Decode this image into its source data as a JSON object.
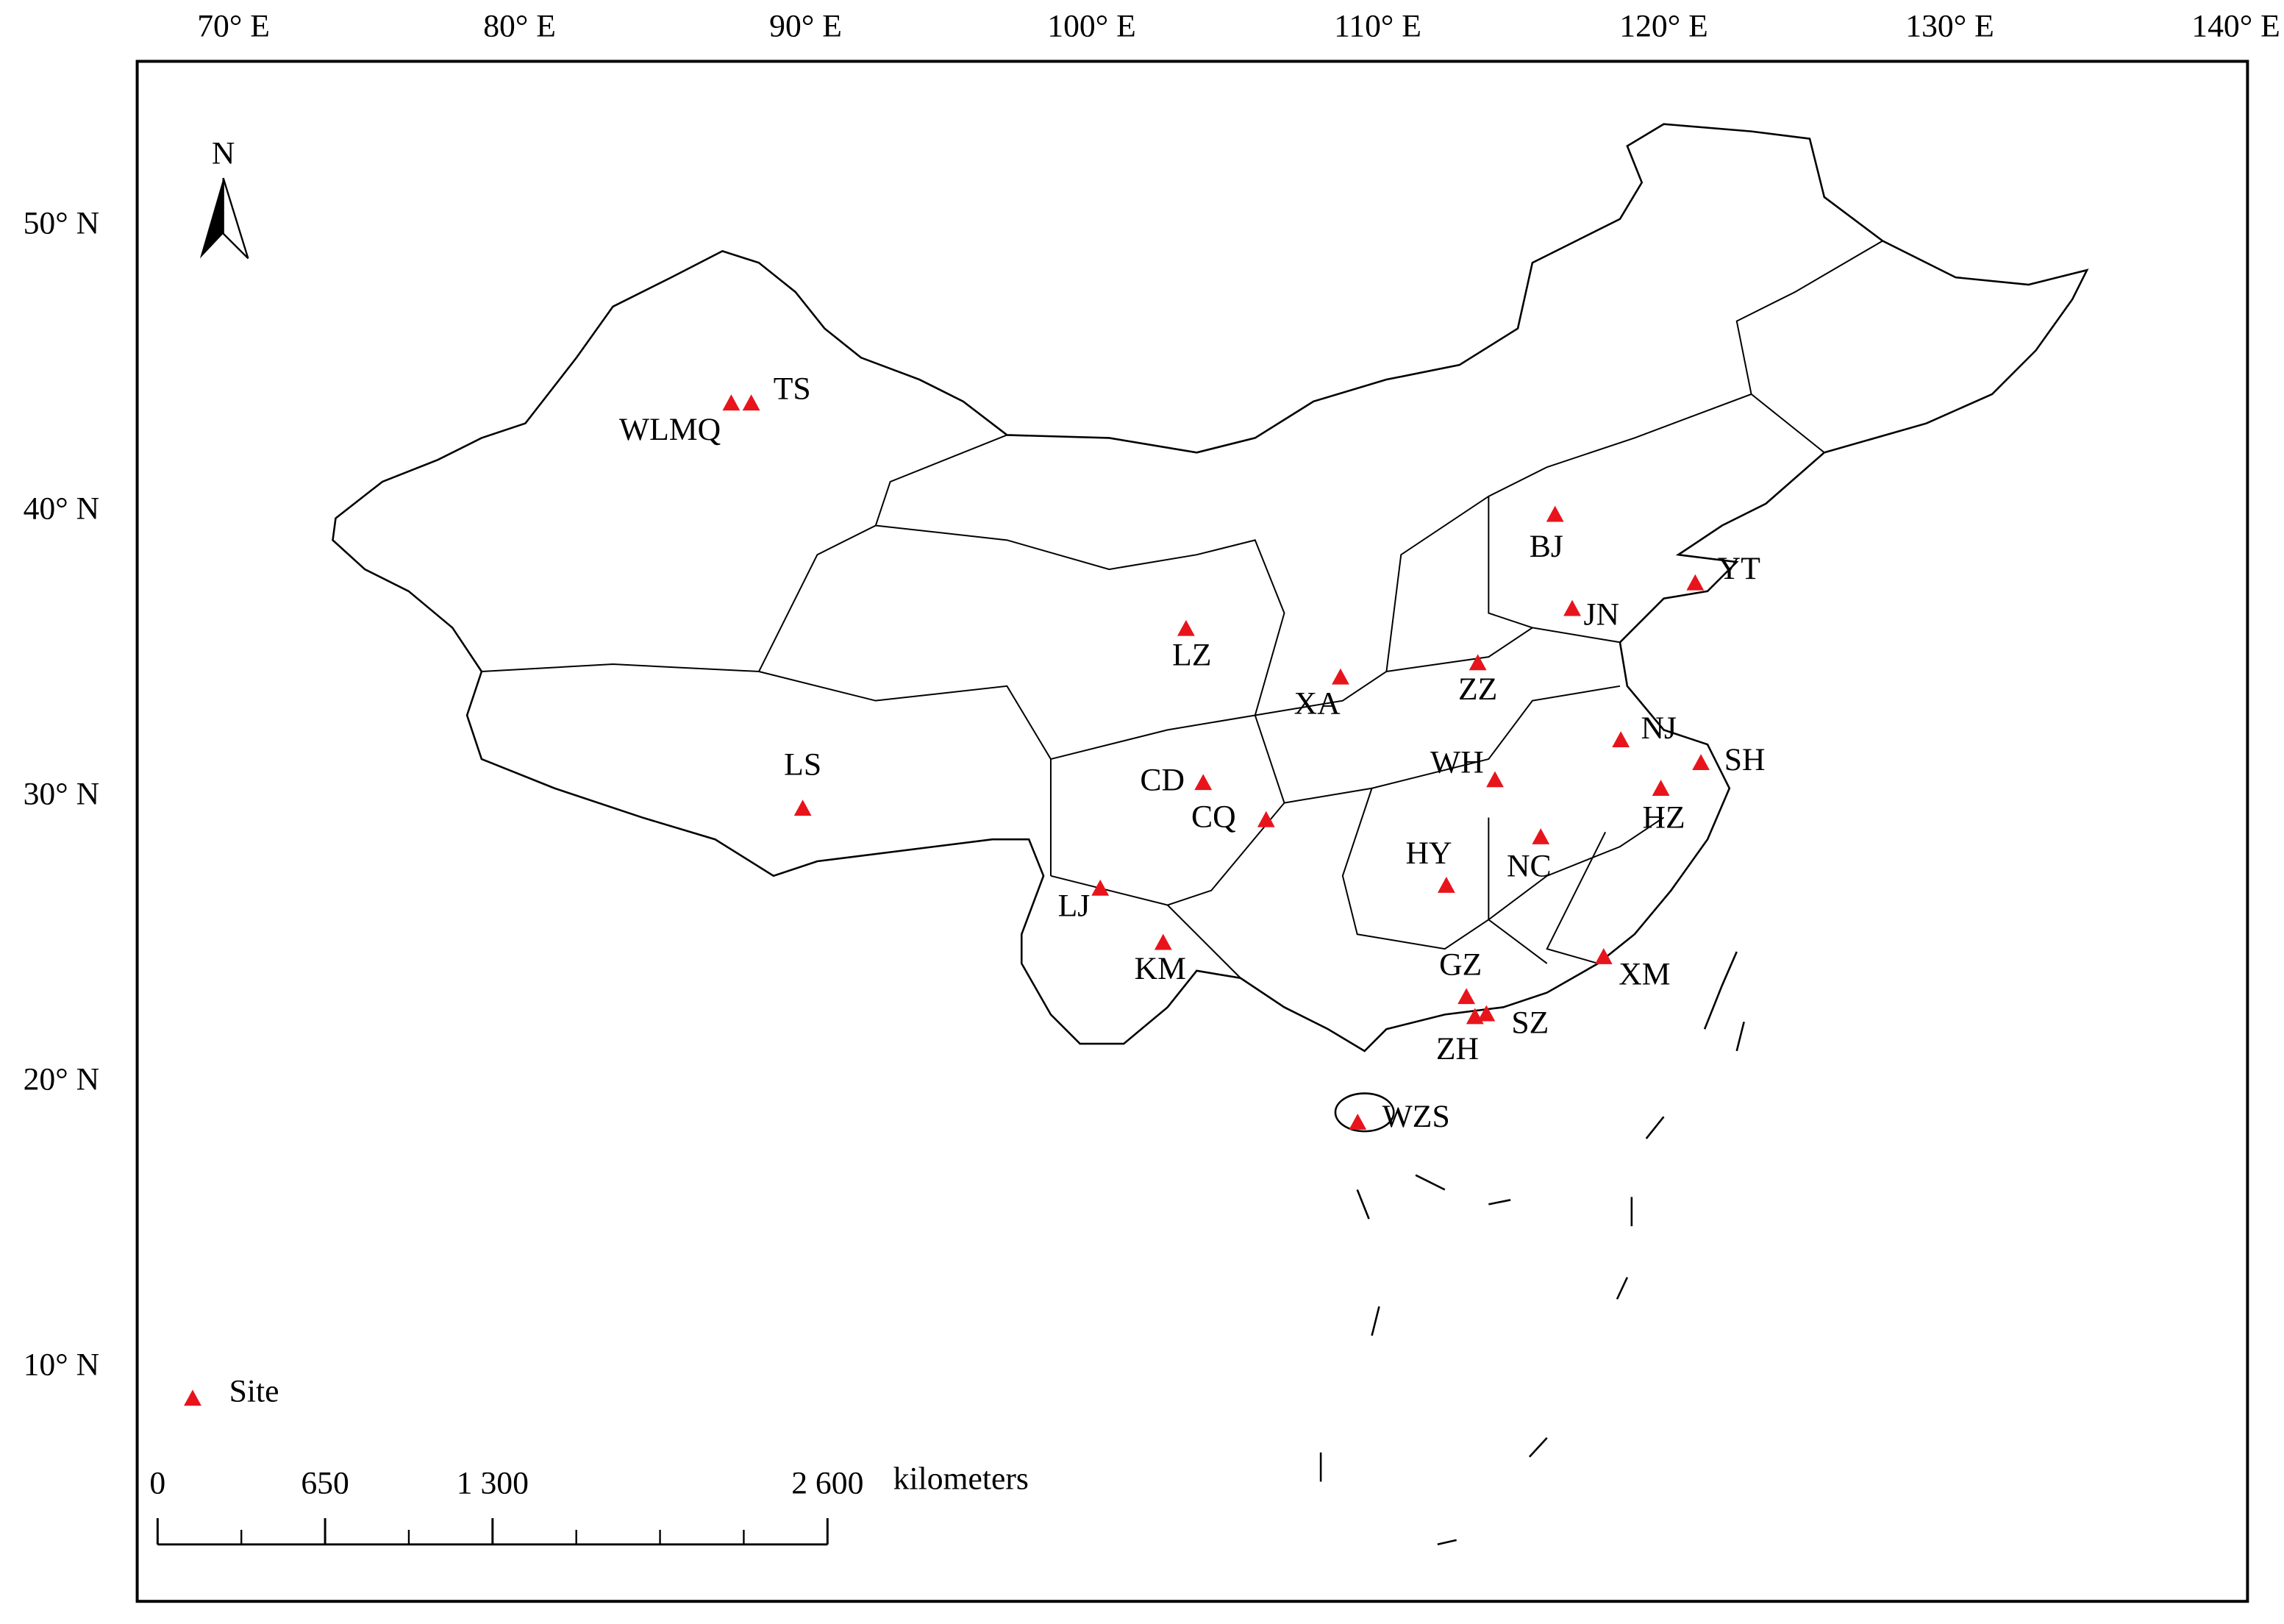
{
  "map": {
    "lon_ticks": [
      {
        "value": 70,
        "label": "70° E"
      },
      {
        "value": 80,
        "label": "80° E"
      },
      {
        "value": 90,
        "label": "90° E"
      },
      {
        "value": 100,
        "label": "100° E"
      },
      {
        "value": 110,
        "label": "110° E"
      },
      {
        "value": 120,
        "label": "120° E"
      },
      {
        "value": 130,
        "label": "130° E"
      },
      {
        "value": 140,
        "label": "140° E"
      }
    ],
    "lat_ticks": [
      {
        "value": 50,
        "label": "50° N"
      },
      {
        "value": 40,
        "label": "40° N"
      },
      {
        "value": 30,
        "label": "30° N"
      },
      {
        "value": 20,
        "label": "20° N"
      },
      {
        "value": 10,
        "label": "10° N"
      }
    ],
    "north_label": "N",
    "legend_label": "Site",
    "site_color": "#e8141c",
    "sites": [
      {
        "name": "WLMQ",
        "lon": 87.4,
        "lat": 43.8
      },
      {
        "name": "TS",
        "lon": 88.1,
        "lat": 43.8
      },
      {
        "name": "LS",
        "lon": 89.9,
        "lat": 29.6
      },
      {
        "name": "LZ",
        "lon": 103.3,
        "lat": 35.9
      },
      {
        "name": "XA",
        "lon": 108.7,
        "lat": 34.2
      },
      {
        "name": "CD",
        "lon": 103.9,
        "lat": 30.5
      },
      {
        "name": "CQ",
        "lon": 106.1,
        "lat": 29.2
      },
      {
        "name": "LJ",
        "lon": 100.3,
        "lat": 26.8
      },
      {
        "name": "KM",
        "lon": 102.5,
        "lat": 24.9
      },
      {
        "name": "BJ",
        "lon": 116.2,
        "lat": 39.9
      },
      {
        "name": "YT",
        "lon": 121.1,
        "lat": 37.5
      },
      {
        "name": "JN",
        "lon": 116.8,
        "lat": 36.6
      },
      {
        "name": "ZZ",
        "lon": 113.5,
        "lat": 34.7
      },
      {
        "name": "WH",
        "lon": 114.1,
        "lat": 30.6
      },
      {
        "name": "NJ",
        "lon": 118.5,
        "lat": 32.0
      },
      {
        "name": "SH",
        "lon": 121.3,
        "lat": 31.2
      },
      {
        "name": "HZ",
        "lon": 119.9,
        "lat": 30.3
      },
      {
        "name": "NC",
        "lon": 115.7,
        "lat": 28.6
      },
      {
        "name": "HY",
        "lon": 112.4,
        "lat": 26.9
      },
      {
        "name": "GZ",
        "lon": 113.1,
        "lat": 23.0
      },
      {
        "name": "SZ",
        "lon": 113.8,
        "lat": 22.4
      },
      {
        "name": "ZH",
        "lon": 113.4,
        "lat": 22.3
      },
      {
        "name": "XM",
        "lon": 117.9,
        "lat": 24.4
      },
      {
        "name": "WZS",
        "lon": 109.3,
        "lat": 18.6
      }
    ],
    "scale_bar": {
      "ticks": [
        {
          "value": 0,
          "label": "0"
        },
        {
          "value": 650,
          "label": "650"
        },
        {
          "value": 1300,
          "label": "1 300"
        },
        {
          "value": 2600,
          "label": "2 600"
        }
      ],
      "unit": "kilometers"
    }
  }
}
